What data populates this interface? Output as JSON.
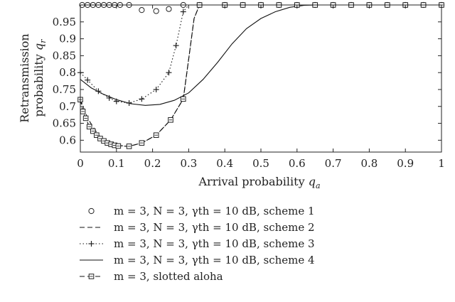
{
  "chart_data": {
    "type": "line",
    "xlabel": "Arrival probability q_a",
    "ylabel_line1": "Retransmission",
    "ylabel_line2": "probability q_r",
    "xlim": [
      0,
      1
    ],
    "ylim": [
      0.565,
      1.0
    ],
    "xticks": [
      0,
      0.1,
      0.2,
      0.3,
      0.4,
      0.5,
      0.6,
      0.7,
      0.8,
      0.9,
      1
    ],
    "xtick_labels": [
      "0",
      "0.1",
      "0.2",
      "0.3",
      "0.4",
      "0.5",
      "0.6",
      "0.7",
      "0.8",
      "0.9",
      "1"
    ],
    "yticks": [
      0.6,
      0.65,
      0.7,
      0.75,
      0.8,
      0.85,
      0.9,
      0.95
    ],
    "ytick_labels": [
      "0.6",
      "0.65",
      "0.7",
      "0.75",
      "0.8",
      "0.85",
      "0.9",
      "0.95"
    ],
    "grid": false,
    "legend_position": "below",
    "series": [
      {
        "name": "m = 3, N = 3, γth = 10 dB, scheme 1",
        "style": "circle-markers",
        "x": [
          0.005,
          0.02,
          0.035,
          0.05,
          0.065,
          0.08,
          0.095,
          0.11,
          0.135,
          0.17,
          0.21,
          0.245,
          0.285,
          0.33,
          0.4,
          0.45,
          0.5,
          0.55,
          0.6,
          0.65,
          0.7,
          0.75,
          0.8,
          0.85,
          0.9,
          0.95,
          1.0
        ],
        "y": [
          1.0,
          1.0,
          1.0,
          1.0,
          1.0,
          1.0,
          1.0,
          1.0,
          1.0,
          0.985,
          0.982,
          0.988,
          1.0,
          1.0,
          1.0,
          1.0,
          1.0,
          1.0,
          1.0,
          1.0,
          1.0,
          1.0,
          1.0,
          1.0,
          1.0,
          1.0,
          1.0
        ]
      },
      {
        "name": "m = 3, N = 3, γth = 10 dB, scheme 2",
        "style": "dashed",
        "x": [
          0.0,
          0.02,
          0.05,
          0.08,
          0.1,
          0.135,
          0.17,
          0.21,
          0.25,
          0.285,
          0.3,
          0.315,
          0.33,
          0.4,
          0.6,
          0.8,
          1.0
        ],
        "y": [
          0.72,
          0.665,
          0.615,
          0.592,
          0.585,
          0.582,
          0.592,
          0.615,
          0.66,
          0.722,
          0.84,
          0.96,
          1.0,
          1.0,
          1.0,
          1.0,
          1.0
        ]
      },
      {
        "name": "m = 3, N = 3, γth = 10 dB, scheme 3",
        "style": "dotted-plus",
        "x": [
          0.0,
          0.02,
          0.05,
          0.08,
          0.1,
          0.135,
          0.17,
          0.21,
          0.245,
          0.265,
          0.285,
          0.3,
          0.35,
          0.5,
          0.7,
          1.0
        ],
        "y": [
          0.8,
          0.778,
          0.745,
          0.725,
          0.715,
          0.71,
          0.722,
          0.75,
          0.8,
          0.88,
          0.98,
          1.0,
          1.0,
          1.0,
          1.0,
          1.0
        ]
      },
      {
        "name": "m = 3, N = 3, γth = 10 dB, scheme 4",
        "style": "solid",
        "x": [
          0.0,
          0.03,
          0.06,
          0.1,
          0.14,
          0.18,
          0.22,
          0.26,
          0.3,
          0.34,
          0.38,
          0.42,
          0.46,
          0.5,
          0.54,
          0.58,
          0.62,
          0.66,
          0.7,
          0.8,
          0.9,
          1.0
        ],
        "y": [
          0.78,
          0.755,
          0.738,
          0.72,
          0.708,
          0.703,
          0.706,
          0.718,
          0.74,
          0.78,
          0.83,
          0.885,
          0.93,
          0.96,
          0.98,
          0.993,
          0.999,
          1.0,
          1.0,
          1.0,
          1.0,
          1.0
        ]
      },
      {
        "name": "m = 3, slotted aloha",
        "style": "dashed-square",
        "x": [
          0.0,
          0.007,
          0.015,
          0.025,
          0.035,
          0.045,
          0.055,
          0.065,
          0.075,
          0.085,
          0.095,
          0.105,
          0.135,
          0.17,
          0.21,
          0.25,
          0.285,
          0.3,
          0.315,
          0.33,
          0.4,
          0.45,
          0.5,
          0.55,
          0.6,
          0.65,
          0.7,
          0.8,
          0.9,
          1.0
        ],
        "y": [
          0.72,
          0.685,
          0.665,
          0.64,
          0.627,
          0.615,
          0.605,
          0.598,
          0.592,
          0.588,
          0.585,
          0.583,
          0.582,
          0.592,
          0.615,
          0.66,
          0.722,
          0.84,
          0.96,
          1.0,
          1.0,
          1.0,
          1.0,
          1.0,
          1.0,
          1.0,
          1.0,
          1.0,
          1.0,
          1.0
        ],
        "markers_x": [
          0.0,
          0.007,
          0.015,
          0.025,
          0.035,
          0.045,
          0.055,
          0.065,
          0.075,
          0.085,
          0.095,
          0.105,
          0.135,
          0.17,
          0.21,
          0.25,
          0.285,
          0.33,
          0.4,
          0.45,
          0.5,
          0.55,
          0.6,
          0.65,
          0.7,
          0.75,
          0.8,
          0.85,
          0.9,
          0.95,
          1.0
        ]
      }
    ]
  }
}
